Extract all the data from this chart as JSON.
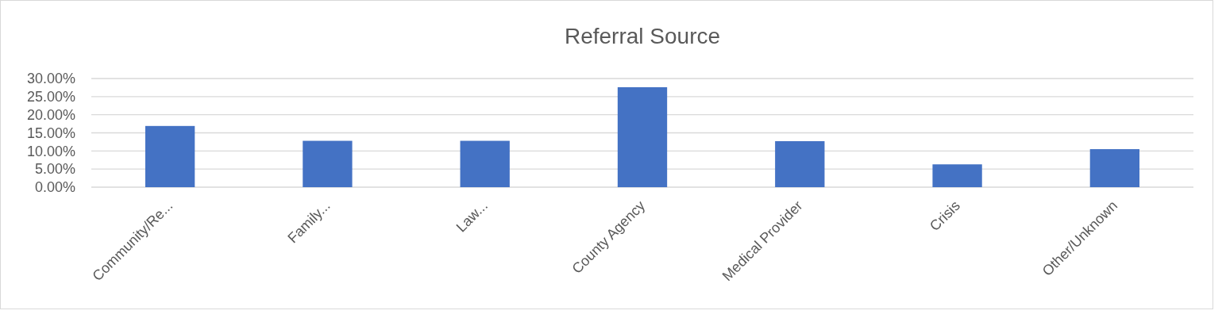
{
  "chart_data": {
    "type": "bar",
    "title": "Referral Source",
    "categories": [
      "Community/Re...",
      "Family...",
      "Law...",
      "County Agency",
      "Medical Provider",
      "Crisis",
      "Other/Unknown"
    ],
    "values": [
      16.9,
      12.8,
      12.8,
      27.6,
      12.7,
      6.3,
      10.5
    ],
    "color": "#4472c4",
    "ylim": [
      0,
      30
    ],
    "yticks": [
      {
        "value": 0,
        "label": "0.00%"
      },
      {
        "value": 5,
        "label": "5.00%"
      },
      {
        "value": 10,
        "label": "10.00%"
      },
      {
        "value": 15,
        "label": "15.00%"
      },
      {
        "value": 20,
        "label": "20.00%"
      },
      {
        "value": 25,
        "label": "25.00%"
      },
      {
        "value": 30,
        "label": "30.00%"
      }
    ],
    "grid": "y"
  }
}
